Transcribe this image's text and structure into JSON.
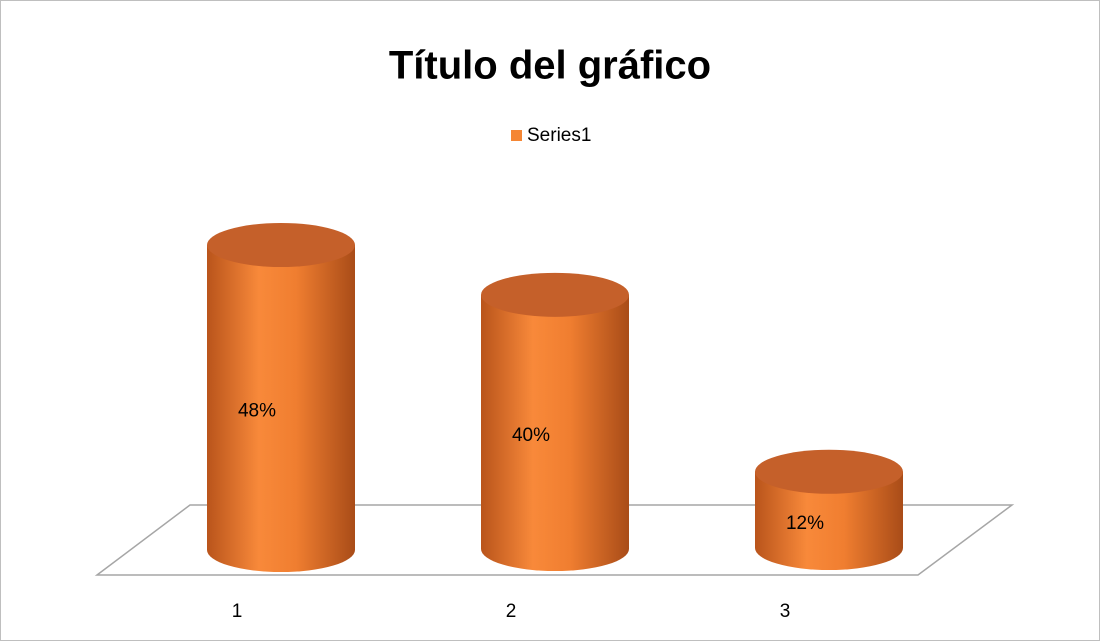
{
  "chart_data": {
    "type": "cylinder",
    "title": "Título del gráfico",
    "categories": [
      "1",
      "2",
      "3"
    ],
    "series": [
      {
        "name": "Series1",
        "color": "#f58634",
        "values": [
          48,
          40,
          12
        ],
        "value_labels": [
          "48%",
          "40%",
          "12%"
        ]
      }
    ],
    "legend": "top"
  }
}
